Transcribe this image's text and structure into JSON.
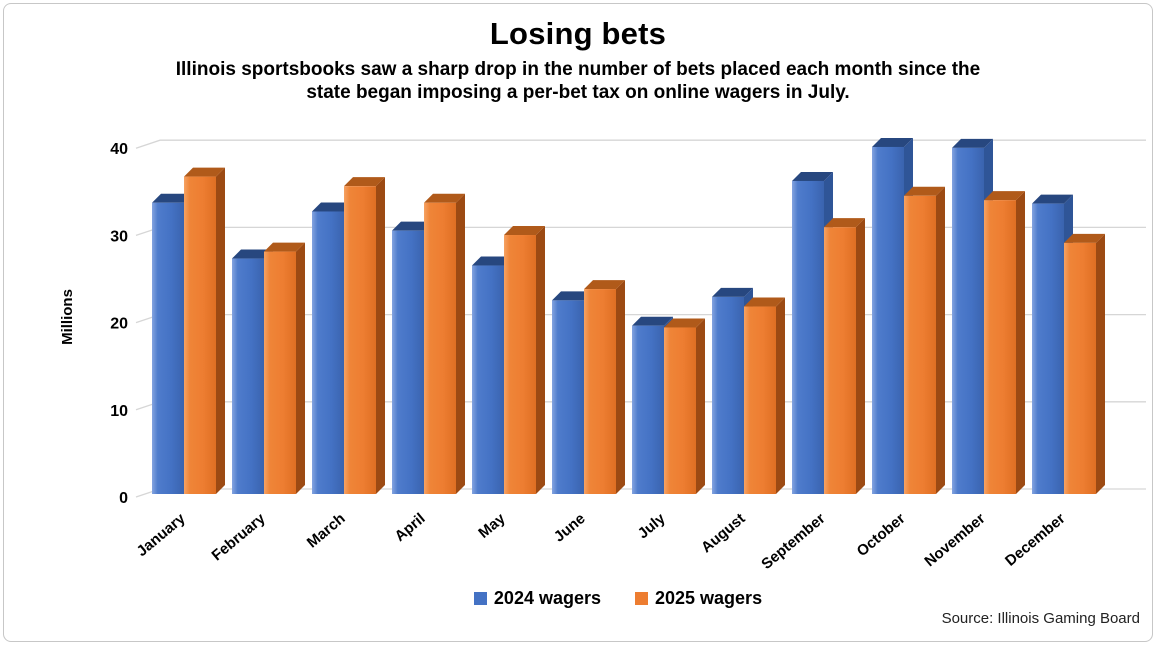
{
  "page": {
    "background": "#ffffff",
    "frame_border_color": "#c7c7c7"
  },
  "header": {
    "title": "Losing bets",
    "subtitle": "Illinois sportsbooks saw a sharp drop in the number of bets placed each month since the state began imposing a per-bet tax on online wagers in July."
  },
  "legend": [
    {
      "label": "2024 wagers",
      "color": "#4472c4"
    },
    {
      "label": "2025 wagers",
      "color": "#ed7d31"
    }
  ],
  "source_note": "Source: Illinois Gaming Board",
  "chart_data": {
    "type": "bar",
    "style": "3d-clustered",
    "title": "Losing bets",
    "subtitle": "Illinois sportsbooks saw a sharp drop in the number of bets placed each month since the state began imposing a per-bet tax on online wagers in July.",
    "xlabel": "",
    "ylabel": "Millions",
    "ylim": [
      0,
      40
    ],
    "yticks": [
      0,
      10,
      20,
      30,
      40
    ],
    "grid": true,
    "legend_position": "bottom",
    "categories": [
      "January",
      "February",
      "March",
      "April",
      "May",
      "June",
      "July",
      "August",
      "September",
      "October",
      "November",
      "December"
    ],
    "series": [
      {
        "name": "2024 wagers",
        "color": "#4472c4",
        "values": [
          33.4,
          27.0,
          32.4,
          30.2,
          26.2,
          22.2,
          19.3,
          22.6,
          35.9,
          39.8,
          39.7,
          33.3
        ]
      },
      {
        "name": "2025 wagers",
        "color": "#ed7d31",
        "values": [
          36.4,
          27.8,
          35.3,
          33.4,
          29.7,
          23.5,
          19.1,
          21.5,
          30.6,
          34.2,
          33.7,
          28.8
        ]
      }
    ]
  }
}
